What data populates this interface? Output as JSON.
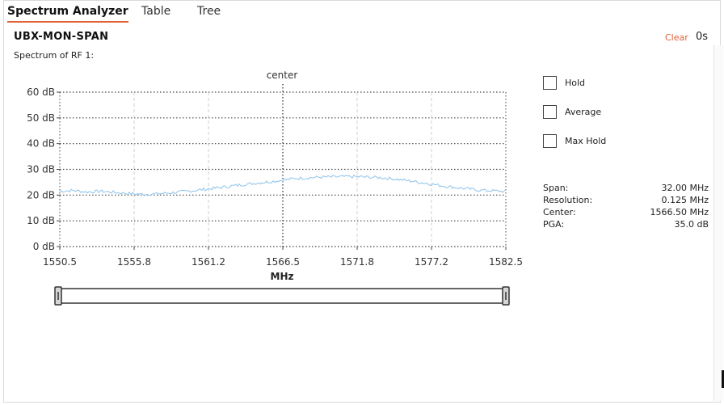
{
  "tabs": [
    {
      "label": "Spectrum Analyzer",
      "active": true
    },
    {
      "label": "Table",
      "active": false
    },
    {
      "label": "Tree",
      "active": false
    }
  ],
  "panel": {
    "title": "UBX-MON-SPAN",
    "subtitle": "Spectrum of RF 1:",
    "clear_label": "Clear",
    "timer": "0s"
  },
  "options": [
    {
      "label": "Hold",
      "checked": false
    },
    {
      "label": "Average",
      "checked": false
    },
    {
      "label": "Max Hold",
      "checked": false
    }
  ],
  "stats": [
    {
      "label": "Span:",
      "value": "32.00 MHz"
    },
    {
      "label": "Resolution:",
      "value": "0.125 MHz"
    },
    {
      "label": "Center:",
      "value": "1566.50 MHz"
    },
    {
      "label": "PGA:",
      "value": "35.0 dB"
    }
  ],
  "colors": {
    "accent": "#e0613a",
    "line": "#8dc3ea",
    "grid": "#444444"
  },
  "chart_data": {
    "type": "line",
    "xlabel": "MHz",
    "ylabel": "",
    "xlim": [
      1550.5,
      1582.5
    ],
    "ylim": [
      0,
      60
    ],
    "xticks": [
      "1550.5",
      "1555.8",
      "1561.2",
      "1566.5",
      "1571.8",
      "1577.2",
      "1582.5"
    ],
    "yticks": [
      "0 dB",
      "10 dB",
      "20 dB",
      "30 dB",
      "40 dB",
      "50 dB",
      "60 dB"
    ],
    "center_label": "center",
    "center_value": 1566.5,
    "grid": true,
    "series": [
      {
        "x": [
          1550.5,
          1551.5,
          1552.5,
          1553.5,
          1554.5,
          1555.5,
          1556.5,
          1557.5,
          1558.5,
          1559.5,
          1560.5,
          1561.5,
          1562.5,
          1563.5,
          1564.5,
          1565.5,
          1566.5,
          1567.0,
          1567.5,
          1568.5,
          1569.5,
          1570.5,
          1571.5,
          1572.5,
          1573.5,
          1574.5,
          1575.5,
          1576.5,
          1577.5,
          1578.5,
          1579.5,
          1580.5,
          1581.5,
          1582.5
        ],
        "values": [
          21.5,
          21.8,
          21.2,
          21.5,
          21.0,
          20.6,
          20.3,
          20.5,
          20.9,
          21.4,
          22.0,
          22.6,
          23.3,
          24.0,
          24.6,
          25.2,
          25.8,
          26.2,
          26.5,
          26.8,
          27.0,
          27.1,
          27.2,
          27.0,
          26.8,
          26.3,
          25.6,
          24.8,
          24.0,
          23.2,
          22.6,
          22.0,
          21.7,
          21.4
        ]
      }
    ]
  }
}
